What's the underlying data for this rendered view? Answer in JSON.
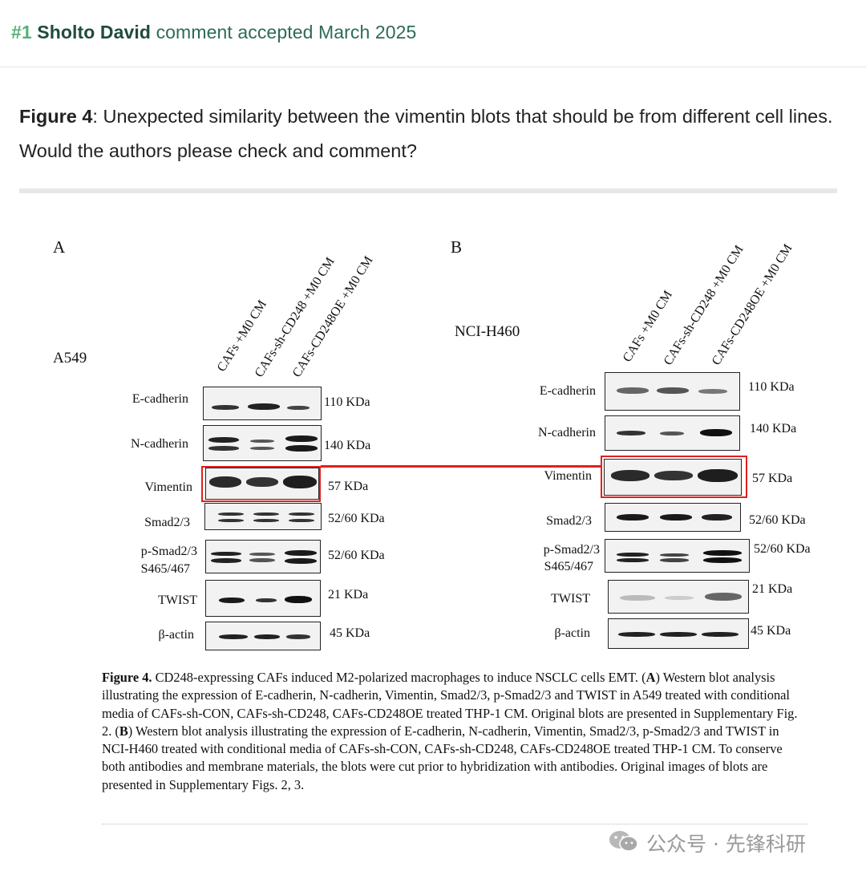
{
  "comment_header": {
    "number": "#1",
    "author": "Sholto David",
    "meta": "comment accepted March 2025"
  },
  "comment_body": {
    "figure_ref": "Figure 4",
    "text": ": Unexpected similarity between the vimentin blots that should be from different cell lines. Would the authors please check and comment?"
  },
  "figure": {
    "panel_a": {
      "letter": "A",
      "cell_line": "A549",
      "lanes": [
        "CAFs +M0 CM",
        "CAFs-sh-CD248 +M0 CM",
        "CAFs-CD248OE +M0 CM"
      ],
      "rows": [
        {
          "label": "E-cadherin",
          "kda": "110 KDa"
        },
        {
          "label": "N-cadherin",
          "kda": "140 KDa"
        },
        {
          "label": "Vimentin",
          "kda": "57 KDa"
        },
        {
          "label": "Smad2/3",
          "kda": "52/60 KDa"
        },
        {
          "label": "p-Smad2/3",
          "label2": "S465/467",
          "kda": "52/60 KDa"
        },
        {
          "label": "TWIST",
          "kda": "21 KDa"
        },
        {
          "label": "β-actin",
          "kda": "45 KDa"
        }
      ]
    },
    "panel_b": {
      "letter": "B",
      "cell_line": "NCI-H460",
      "lanes": [
        "CAFs +M0 CM",
        "CAFs-sh-CD248 +M0 CM",
        "CAFs-CD248OE +M0 CM"
      ],
      "rows": [
        {
          "label": "E-cadherin",
          "kda": "110 KDa"
        },
        {
          "label": "N-cadherin",
          "kda": "140 KDa"
        },
        {
          "label": "Vimentin",
          "kda": "57 KDa"
        },
        {
          "label": "Smad2/3",
          "kda": "52/60 KDa"
        },
        {
          "label": "p-Smad2/3",
          "label2": "S465/467",
          "kda": "52/60 KDa"
        },
        {
          "label": "TWIST",
          "kda": "21 KDa"
        },
        {
          "label": "β-actin",
          "kda": "45 KDa"
        }
      ]
    },
    "highlight_color": "#e0201e",
    "caption": {
      "lead": "Figure 4.",
      "text_1": " CD248-expressing CAFs induced M2-polarized macrophages to induce NSCLC cells EMT. (",
      "a": "A",
      "text_2": ") Western blot analysis illustrating the expression of E-cadherin, N-cadherin, Vimentin, Smad2/3, p-Smad2/3 and TWIST in A549 treated with conditional media of CAFs-sh-CON, CAFs-sh-CD248, CAFs-CD248OE treated THP-1 CM. Original blots are presented in Supplementary Fig. 2. (",
      "b": "B",
      "text_3": ") Western blot analysis illustrating the expression of E-cadherin, N-cadherin, Vimentin, Smad2/3, p-Smad2/3 and TWIST in NCI-H460 treated with conditional media of CAFs-sh-CON, CAFs-sh-CD248, CAFs-CD248OE treated THP-1 CM. To conserve both antibodies and membrane materials, the blots were cut prior to hybridization with antibodies. Original images of blots are presented in Supplementary Figs. 2, 3."
    }
  },
  "watermark": {
    "icon": "wechat-icon",
    "text": "公众号 · 先锋科研"
  }
}
